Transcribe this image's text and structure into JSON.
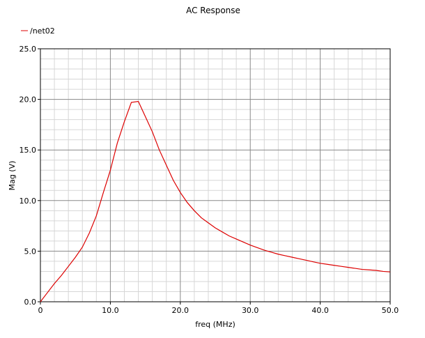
{
  "chart_data": {
    "type": "line",
    "title": "AC Response",
    "xlabel": "freq (MHz)",
    "ylabel": "Mag (V)",
    "xlim": [
      0,
      50
    ],
    "ylim": [
      0,
      25
    ],
    "x_ticks": [
      "0",
      "10.0",
      "20.0",
      "30.0",
      "40.0",
      "50.0"
    ],
    "y_ticks": [
      "0.0",
      "5.0",
      "10.0",
      "15.0",
      "20.0",
      "25.0"
    ],
    "grid": true,
    "legend": "top-left",
    "colors": {
      "series": "#dd0000",
      "major_grid": "#888888",
      "minor_grid": "#d6d6d6"
    },
    "series": [
      {
        "name": "/net02",
        "x": [
          0,
          1,
          2,
          3,
          4,
          5,
          6,
          7,
          8,
          9,
          10,
          11,
          12,
          13,
          14,
          15,
          16,
          17,
          18,
          19,
          20,
          21,
          22,
          23,
          24,
          25,
          26,
          27,
          28,
          29,
          30,
          31,
          32,
          33,
          34,
          35,
          36,
          37,
          38,
          39,
          40,
          41,
          42,
          43,
          44,
          45,
          46,
          47,
          48,
          49,
          50
        ],
        "values": [
          0,
          0.9,
          1.8,
          2.6,
          3.5,
          4.4,
          5.4,
          6.8,
          8.5,
          10.8,
          13.0,
          15.7,
          17.8,
          19.7,
          19.8,
          18.3,
          16.8,
          15.0,
          13.5,
          12.0,
          10.8,
          9.8,
          9.0,
          8.3,
          7.8,
          7.3,
          6.9,
          6.5,
          6.2,
          5.9,
          5.6,
          5.35,
          5.1,
          4.9,
          4.7,
          4.55,
          4.4,
          4.25,
          4.1,
          3.95,
          3.8,
          3.7,
          3.6,
          3.5,
          3.4,
          3.3,
          3.2,
          3.15,
          3.1,
          3.0,
          2.95
        ]
      }
    ]
  }
}
